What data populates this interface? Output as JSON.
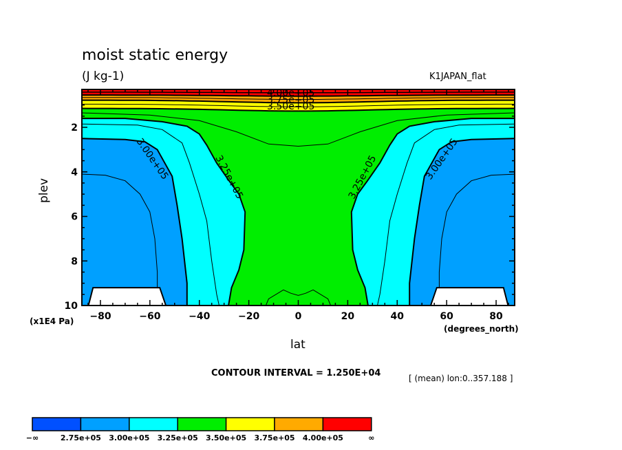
{
  "header": {
    "title": "moist static energy",
    "units": "(J kg-1)",
    "run_name": "K1JAPAN_flat"
  },
  "footer": {
    "contour_interval": "CONTOUR INTERVAL = 1.250E+04",
    "mean_note": "[ (mean) lon:0..357.188 ]"
  },
  "chart_data": {
    "type": "contour",
    "title": "moist static energy",
    "subtitle": "(J kg-1)",
    "xlabel": "lat",
    "xunits": "(degrees_north)",
    "ylabel": "plev",
    "yunits": "(x1E4 Pa)",
    "xlim": [
      -87.5,
      87.5
    ],
    "ylim": [
      10,
      0.3
    ],
    "y_inverted": true,
    "xticks": [
      -80,
      -60,
      -40,
      -20,
      0,
      20,
      40,
      60,
      80
    ],
    "xtick_labels": [
      "−80",
      "−60",
      "−40",
      "−20",
      "0",
      "20",
      "40",
      "60",
      "80"
    ],
    "yticks": [
      2,
      4,
      6,
      8,
      10
    ],
    "ytick_labels": [
      "2",
      "4",
      "6",
      "8",
      "10"
    ],
    "contour_interval": 12500,
    "levels": [
      275000,
      300000,
      325000,
      350000,
      375000,
      400000
    ],
    "colorbar": {
      "orientation": "horizontal",
      "position": "bottom",
      "colors": [
        "#0050ff",
        "#00a0ff",
        "#00ffff",
        "#00ee00",
        "#ffff00",
        "#ffaa00",
        "#ff0000"
      ],
      "labels": [
        "−∞",
        "2.75e+05",
        "3.00e+05",
        "3.25e+05",
        "3.50e+05",
        "3.75e+05",
        "4.00e+05",
        "∞"
      ]
    },
    "contour_labels": [
      {
        "text": "4.00e+05",
        "lat": -3,
        "plev": 0.6
      },
      {
        "text": "3.75e+05",
        "lat": -3,
        "plev": 0.9
      },
      {
        "text": "3.50e+05",
        "lat": -3,
        "plev": 1.2
      },
      {
        "text": "3.00e+05",
        "lat": -60,
        "plev": 3.5
      },
      {
        "text": "3.25e+05",
        "lat": -29,
        "plev": 4.3
      },
      {
        "text": "3.25e+05",
        "lat": 27,
        "plev": 4.3
      },
      {
        "text": "3.00e+05",
        "lat": 59,
        "plev": 3.5
      }
    ],
    "masked_regions": [
      {
        "description": "topography (white)",
        "lat_range": [
          -84,
          -50
        ],
        "plev_above": 9.2
      },
      {
        "description": "topography (white)",
        "lat_range": [
          49,
          84
        ],
        "plev_above": 9.2
      }
    ],
    "fields": {
      "upper_levels_plev_lt_1_5": "stratified bands 3.50e+05 to >4.00e+05, increasing upward",
      "tropics": "3.25e+05-3.50e+05 (green) column from top to surface, narrowing to lat ±10 at plev 6-8",
      "mid_latitudes": "3.00e+05-3.25e+05 (cyan)",
      "high_latitudes": "2.75e+05-3.00e+05 (blue) below plev ~2.5"
    }
  }
}
